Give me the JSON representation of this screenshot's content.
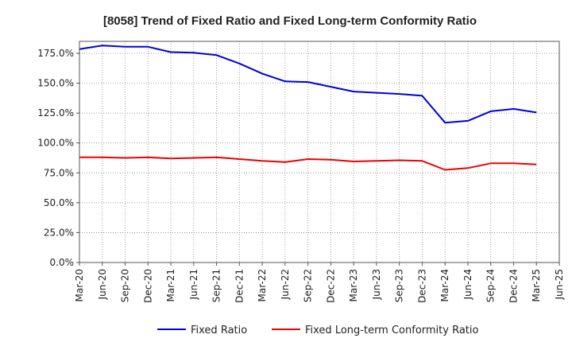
{
  "chart_data": {
    "type": "line",
    "title": "[8058]  Trend of Fixed Ratio and Fixed Long-term Conformity Ratio",
    "xlabel": "",
    "ylabel": "",
    "x": [
      "Mar-20",
      "Jun-20",
      "Sep-20",
      "Dec-20",
      "Mar-21",
      "Jun-21",
      "Sep-21",
      "Dec-21",
      "Mar-22",
      "Jun-22",
      "Sep-22",
      "Dec-22",
      "Mar-23",
      "Jun-23",
      "Sep-23",
      "Dec-23",
      "Mar-24",
      "Jun-24",
      "Sep-24",
      "Dec-24",
      "Mar-25"
    ],
    "x_ticks": [
      "Mar-20",
      "Jun-20",
      "Sep-20",
      "Dec-20",
      "Mar-21",
      "Jun-21",
      "Sep-21",
      "Dec-21",
      "Mar-22",
      "Jun-22",
      "Sep-22",
      "Dec-22",
      "Mar-23",
      "Jun-23",
      "Sep-23",
      "Dec-23",
      "Mar-24",
      "Jun-24",
      "Sep-24",
      "Dec-24",
      "Mar-25",
      "Jun-25"
    ],
    "y_ticks": [
      "0.0%",
      "25.0%",
      "50.0%",
      "75.0%",
      "100.0%",
      "125.0%",
      "150.0%",
      "175.0%"
    ],
    "ylim": [
      0,
      185
    ],
    "grid": true,
    "legend_position": "bottom",
    "series": [
      {
        "name": "Fixed Ratio",
        "color": "#0000dd",
        "values": [
          178.5,
          181.5,
          180.5,
          180.5,
          176.0,
          175.5,
          173.5,
          166.5,
          158.0,
          151.5,
          151.0,
          147.0,
          143.0,
          142.0,
          141.0,
          139.5,
          117.0,
          118.5,
          126.5,
          128.5,
          125.5
        ]
      },
      {
        "name": "Fixed Long-term Conformity Ratio",
        "color": "#ee0000",
        "values": [
          88.0,
          88.0,
          87.5,
          88.0,
          87.0,
          87.5,
          88.0,
          86.5,
          85.0,
          84.0,
          86.5,
          86.0,
          84.5,
          85.0,
          85.5,
          85.0,
          77.5,
          79.0,
          83.0,
          83.0,
          82.0
        ]
      }
    ]
  }
}
